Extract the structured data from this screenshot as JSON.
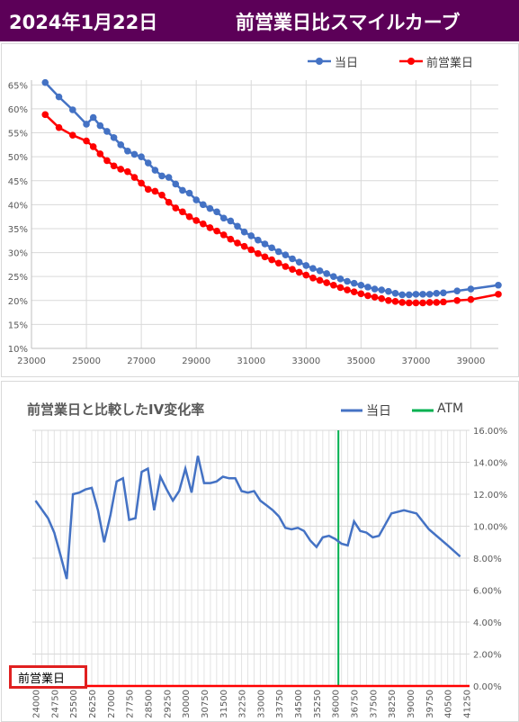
{
  "header": {
    "date": "2024年1月22日",
    "title": "前営業日比スマイルカーブ",
    "bg": "#5c0058"
  },
  "chart_data": [
    {
      "type": "line",
      "title": "",
      "legend": {
        "placement": "top-right",
        "entries": [
          "当日",
          "前営業日"
        ]
      },
      "xlim": [
        23000,
        40000
      ],
      "ylim": [
        0.1,
        0.66
      ],
      "x_ticks": [
        23000,
        25000,
        27000,
        29000,
        31000,
        33000,
        35000,
        37000,
        39000
      ],
      "x_tick_labels": [
        "23000",
        "25000",
        "27000",
        "29000",
        "31000",
        "33000",
        "35000",
        "37000",
        "39000"
      ],
      "y_ticks": [
        0.1,
        0.15,
        0.2,
        0.25,
        0.3,
        0.35,
        0.4,
        0.45,
        0.5,
        0.55,
        0.6,
        0.65
      ],
      "y_tick_labels": [
        "10%",
        "15%",
        "20%",
        "25%",
        "30%",
        "35%",
        "40%",
        "45%",
        "50%",
        "55%",
        "60%",
        "65%"
      ],
      "grid": true,
      "series": [
        {
          "name": "当日",
          "color": "#4472c4",
          "marker": "circle",
          "x": [
            23500,
            24000,
            24500,
            25000,
            25250,
            25500,
            25750,
            26000,
            26250,
            26500,
            26750,
            27000,
            27250,
            27500,
            27750,
            28000,
            28250,
            28500,
            28750,
            29000,
            29250,
            29500,
            29750,
            30000,
            30250,
            30500,
            30750,
            31000,
            31250,
            31500,
            31750,
            32000,
            32250,
            32500,
            32750,
            33000,
            33250,
            33500,
            33750,
            34000,
            34250,
            34500,
            34750,
            35000,
            35250,
            35500,
            35750,
            36000,
            36250,
            36500,
            36750,
            37000,
            37250,
            37500,
            37750,
            38000,
            38500,
            39000,
            40000
          ],
          "y": [
            0.655,
            0.625,
            0.598,
            0.568,
            0.582,
            0.565,
            0.553,
            0.54,
            0.525,
            0.512,
            0.505,
            0.5,
            0.487,
            0.472,
            0.46,
            0.457,
            0.443,
            0.43,
            0.424,
            0.41,
            0.4,
            0.392,
            0.385,
            0.372,
            0.366,
            0.355,
            0.343,
            0.335,
            0.326,
            0.318,
            0.31,
            0.302,
            0.295,
            0.287,
            0.28,
            0.273,
            0.267,
            0.262,
            0.256,
            0.25,
            0.245,
            0.24,
            0.236,
            0.232,
            0.228,
            0.224,
            0.222,
            0.219,
            0.215,
            0.212,
            0.212,
            0.213,
            0.213,
            0.213,
            0.215,
            0.216,
            0.22,
            0.224,
            0.232
          ]
        },
        {
          "name": "前営業日",
          "color": "#ff0000",
          "marker": "circle",
          "x": [
            23500,
            24000,
            24500,
            25000,
            25250,
            25500,
            25750,
            26000,
            26250,
            26500,
            26750,
            27000,
            27250,
            27500,
            27750,
            28000,
            28250,
            28500,
            28750,
            29000,
            29250,
            29500,
            29750,
            30000,
            30250,
            30500,
            30750,
            31000,
            31250,
            31500,
            31750,
            32000,
            32250,
            32500,
            32750,
            33000,
            33250,
            33500,
            33750,
            34000,
            34250,
            34500,
            34750,
            35000,
            35250,
            35500,
            35750,
            36000,
            36250,
            36500,
            36750,
            37000,
            37250,
            37500,
            37750,
            38000,
            38500,
            39000,
            40000
          ],
          "y": [
            0.588,
            0.561,
            0.545,
            0.533,
            0.521,
            0.506,
            0.492,
            0.481,
            0.474,
            0.469,
            0.457,
            0.445,
            0.432,
            0.428,
            0.42,
            0.405,
            0.393,
            0.385,
            0.375,
            0.367,
            0.36,
            0.352,
            0.345,
            0.337,
            0.328,
            0.32,
            0.313,
            0.306,
            0.298,
            0.291,
            0.285,
            0.278,
            0.271,
            0.265,
            0.259,
            0.253,
            0.247,
            0.242,
            0.237,
            0.232,
            0.227,
            0.222,
            0.218,
            0.214,
            0.21,
            0.207,
            0.204,
            0.2,
            0.198,
            0.196,
            0.195,
            0.195,
            0.195,
            0.196,
            0.196,
            0.197,
            0.2,
            0.202,
            0.213
          ]
        }
      ]
    },
    {
      "type": "line",
      "title": "前営業日と比較したIV変化率",
      "legend": {
        "placement": "top-right",
        "entries": [
          "当日",
          "ATM"
        ]
      },
      "y_axis_side": "right",
      "ylim": [
        0,
        0.16
      ],
      "y_ticks": [
        0,
        0.02,
        0.04,
        0.06,
        0.08,
        0.1,
        0.12,
        0.14,
        0.16
      ],
      "y_tick_labels": [
        "0.00%",
        "2.00%",
        "4.00%",
        "6.00%",
        "8.00%",
        "10.00%",
        "12.00%",
        "14.00%",
        "16.00%"
      ],
      "xlim": [
        23875,
        41375
      ],
      "x_tick_labels": [
        "24000",
        "24750",
        "25500",
        "26250",
        "27000",
        "27750",
        "28500",
        "29250",
        "30000",
        "30750",
        "31500",
        "32250",
        "33000",
        "33750",
        "34500",
        "35250",
        "36000",
        "36750",
        "37500",
        "38250",
        "39000",
        "39750",
        "40500",
        "41250"
      ],
      "grid": true,
      "atm_x": 36125,
      "atm_color": "#00b050",
      "series": [
        {
          "name": "当日",
          "color": "#4472c4",
          "x": [
            24000,
            24500,
            24750,
            25000,
            25250,
            25500,
            25750,
            26000,
            26250,
            26500,
            26750,
            27000,
            27250,
            27500,
            27750,
            28000,
            28250,
            28500,
            28750,
            29000,
            29250,
            29500,
            29750,
            30000,
            30250,
            30500,
            30750,
            31000,
            31250,
            31500,
            31750,
            32000,
            32250,
            32500,
            32750,
            33000,
            33250,
            33500,
            33750,
            34000,
            34250,
            34500,
            34750,
            35000,
            35250,
            35500,
            35750,
            36000,
            36250,
            36500,
            36750,
            37000,
            37250,
            37500,
            37750,
            38000,
            38250,
            38750,
            39250,
            39750,
            40500,
            41000
          ],
          "y": [
            0.116,
            0.105,
            0.096,
            0.082,
            0.067,
            0.12,
            0.121,
            0.123,
            0.124,
            0.11,
            0.09,
            0.107,
            0.128,
            0.13,
            0.104,
            0.105,
            0.134,
            0.136,
            0.11,
            0.131,
            0.123,
            0.116,
            0.122,
            0.136,
            0.121,
            0.144,
            0.127,
            0.127,
            0.128,
            0.131,
            0.13,
            0.13,
            0.122,
            0.121,
            0.122,
            0.116,
            0.113,
            0.11,
            0.106,
            0.099,
            0.098,
            0.099,
            0.097,
            0.091,
            0.087,
            0.093,
            0.094,
            0.092,
            0.089,
            0.088,
            0.103,
            0.097,
            0.096,
            0.093,
            0.094,
            0.101,
            0.108,
            0.11,
            0.108,
            0.098,
            0.088,
            0.081
          ]
        },
        {
          "name": "前営業日",
          "color": "#ff0000",
          "x": [
            23875,
            41375
          ],
          "y": [
            0,
            0
          ]
        }
      ]
    }
  ],
  "annotation": {
    "label": "前営業日",
    "border_color": "#e02020"
  }
}
